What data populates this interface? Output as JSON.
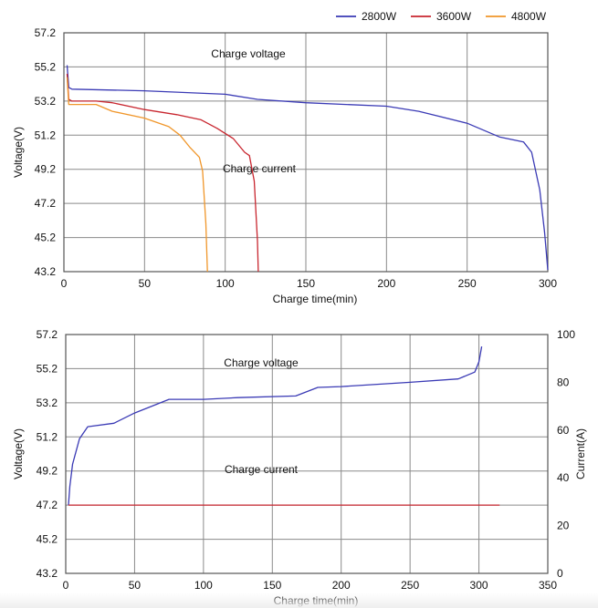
{
  "chart_data": [
    {
      "type": "line",
      "xlabel": "Charge time(min)",
      "ylabel": "Voltage(V)",
      "xlim": [
        0,
        300
      ],
      "ylim": [
        43.2,
        57.2
      ],
      "x_ticks": [
        "0",
        "50",
        "100",
        "150",
        "200",
        "250",
        "300"
      ],
      "y_ticks": [
        "43.2",
        "45.2",
        "47.2",
        "49.2",
        "51.2",
        "53.2",
        "55.2",
        "57.2"
      ],
      "grid": true,
      "legend_position": "top-right",
      "annotations": [
        "Charge voltage",
        "Charge current"
      ],
      "series": [
        {
          "name": "2800W",
          "color": "#3a3ab5",
          "points": [
            [
              2,
              55.3
            ],
            [
              3,
              54.0
            ],
            [
              5,
              53.9
            ],
            [
              50,
              53.8
            ],
            [
              100,
              53.6
            ],
            [
              120,
              53.3
            ],
            [
              150,
              53.1
            ],
            [
              200,
              52.9
            ],
            [
              220,
              52.6
            ],
            [
              250,
              51.9
            ],
            [
              270,
              51.1
            ],
            [
              285,
              50.8
            ],
            [
              290,
              50.2
            ],
            [
              295,
              48.0
            ],
            [
              298,
              45.5
            ],
            [
              300,
              43.3
            ]
          ]
        },
        {
          "name": "3600W",
          "color": "#c8262f",
          "points": [
            [
              2,
              54.8
            ],
            [
              3,
              53.3
            ],
            [
              5,
              53.2
            ],
            [
              20,
              53.2
            ],
            [
              30,
              53.1
            ],
            [
              50,
              52.7
            ],
            [
              70,
              52.4
            ],
            [
              85,
              52.1
            ],
            [
              95,
              51.6
            ],
            [
              105,
              51.0
            ],
            [
              112,
              50.2
            ],
            [
              115,
              50.0
            ],
            [
              118,
              48.5
            ],
            [
              120,
              45.0
            ],
            [
              120.5,
              43.2
            ]
          ]
        },
        {
          "name": "4800W",
          "color": "#f0962a",
          "points": [
            [
              2,
              54.6
            ],
            [
              3,
              53.0
            ],
            [
              5,
              53.0
            ],
            [
              20,
              53.0
            ],
            [
              30,
              52.6
            ],
            [
              50,
              52.2
            ],
            [
              65,
              51.7
            ],
            [
              72,
              51.2
            ],
            [
              78,
              50.5
            ],
            [
              84,
              49.9
            ],
            [
              86,
              49.1
            ],
            [
              88,
              46.0
            ],
            [
              89,
              43.2
            ]
          ]
        }
      ]
    },
    {
      "type": "line",
      "xlabel": "Charge time(min)",
      "ylabel": "Voltage(V)",
      "y2label": "Current(A)",
      "xlim": [
        0,
        350
      ],
      "ylim": [
        43.2,
        57.2
      ],
      "y2lim": [
        0,
        100
      ],
      "x_ticks": [
        "0",
        "50",
        "100",
        "150",
        "200",
        "250",
        "300",
        "350"
      ],
      "y_ticks": [
        "43.2",
        "45.2",
        "47.2",
        "49.2",
        "51.2",
        "53.2",
        "55.2",
        "57.2"
      ],
      "y2_ticks": [
        "0",
        "20",
        "40",
        "60",
        "80",
        "100"
      ],
      "grid": true,
      "annotations": [
        "Charge voltage",
        "Charge current"
      ],
      "series": [
        {
          "name": "Charge voltage",
          "axis": "left",
          "color": "#3a3ab5",
          "points": [
            [
              2,
              47.2
            ],
            [
              3,
              48.3
            ],
            [
              5,
              49.6
            ],
            [
              10,
              51.1
            ],
            [
              16,
              51.8
            ],
            [
              35,
              52.0
            ],
            [
              50,
              52.6
            ],
            [
              75,
              53.4
            ],
            [
              100,
              53.4
            ],
            [
              125,
              53.5
            ],
            [
              167,
              53.6
            ],
            [
              183,
              54.1
            ],
            [
              200,
              54.15
            ],
            [
              250,
              54.4
            ],
            [
              285,
              54.6
            ],
            [
              297,
              55.0
            ],
            [
              300,
              55.6
            ],
            [
              302,
              56.5
            ]
          ]
        },
        {
          "name": "Charge current",
          "axis": "left",
          "color": "#c8262f",
          "points": [
            [
              2,
              47.2
            ],
            [
              315,
              47.2
            ]
          ]
        }
      ]
    }
  ]
}
